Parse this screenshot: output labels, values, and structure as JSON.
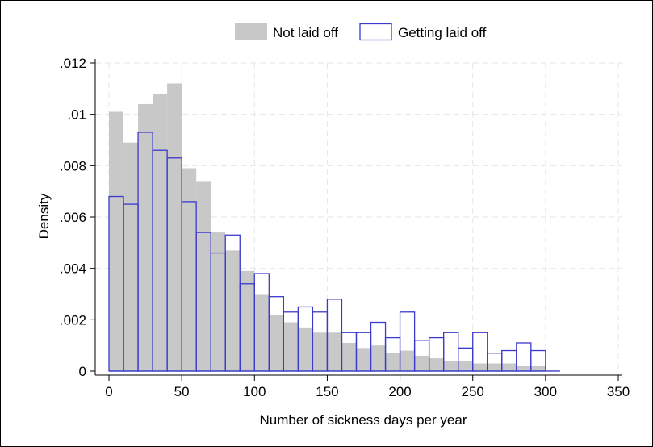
{
  "chart_data": {
    "type": "bar",
    "subtype": "overlaid-histogram",
    "title": "",
    "xlabel": "Number of sickness days per year",
    "ylabel": "Density",
    "xlim": [
      0,
      350
    ],
    "ylim": [
      0,
      0.012
    ],
    "bin_width": 10,
    "bin_starts": [
      0,
      10,
      20,
      30,
      40,
      50,
      60,
      70,
      80,
      90,
      100,
      110,
      120,
      130,
      140,
      150,
      160,
      170,
      180,
      190,
      200,
      210,
      220,
      230,
      240,
      250,
      260,
      270,
      280,
      290,
      300
    ],
    "x_ticks": [
      {
        "value": 0,
        "label": "0"
      },
      {
        "value": 50,
        "label": "50"
      },
      {
        "value": 100,
        "label": "100"
      },
      {
        "value": 150,
        "label": "150"
      },
      {
        "value": 200,
        "label": "200"
      },
      {
        "value": 250,
        "label": "250"
      },
      {
        "value": 300,
        "label": "300"
      },
      {
        "value": 350,
        "label": "350"
      }
    ],
    "y_ticks": [
      {
        "value": 0,
        "label": "0"
      },
      {
        "value": 0.002,
        "label": ".002"
      },
      {
        "value": 0.004,
        "label": ".004"
      },
      {
        "value": 0.006,
        "label": ".006"
      },
      {
        "value": 0.008,
        "label": ".008"
      },
      {
        "value": 0.01,
        "label": ".01"
      },
      {
        "value": 0.012,
        "label": ".012"
      }
    ],
    "grid": true,
    "legend_position": "top",
    "series": [
      {
        "name": "Not laid off",
        "style": "filled",
        "color": "#c8c8c8",
        "values": [
          0.0101,
          0.0089,
          0.0104,
          0.0108,
          0.0112,
          0.0079,
          0.0074,
          0.0054,
          0.0047,
          0.0039,
          0.003,
          0.0022,
          0.0019,
          0.0017,
          0.0015,
          0.0015,
          0.0011,
          0.0009,
          0.001,
          0.0007,
          0.0008,
          0.0006,
          0.0005,
          0.0004,
          0.0004,
          0.0003,
          0.0003,
          0.0003,
          0.0002,
          0.0002,
          5e-05
        ]
      },
      {
        "name": "Getting laid off",
        "style": "outline",
        "color": "#3a3acc",
        "values": [
          0.0068,
          0.0065,
          0.0093,
          0.0086,
          0.0083,
          0.0066,
          0.0054,
          0.0046,
          0.0053,
          0.0034,
          0.0038,
          0.0029,
          0.0023,
          0.0025,
          0.0023,
          0.0028,
          0.0015,
          0.0015,
          0.0019,
          0.0013,
          0.0023,
          0.0012,
          0.0013,
          0.0015,
          0.0009,
          0.0015,
          0.0007,
          0.0008,
          0.0011,
          0.0008,
          0
        ]
      }
    ]
  }
}
